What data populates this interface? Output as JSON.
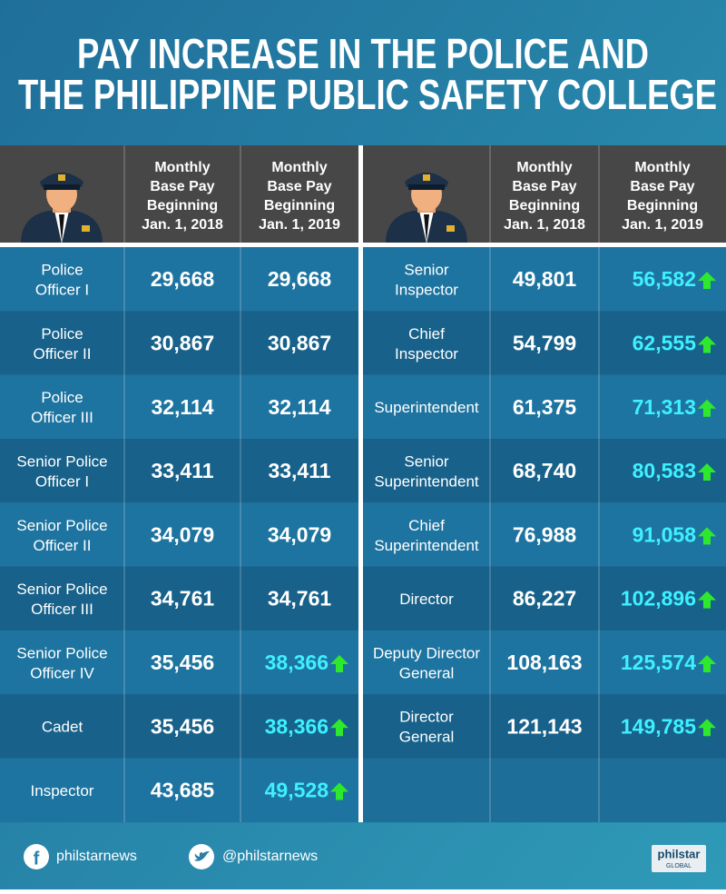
{
  "title": [
    "PAY INCREASE IN THE POLICE AND",
    "THE PHILIPPINE PUBLIC SAFETY COLLEGE"
  ],
  "left": {
    "headers": [
      [
        "Monthly",
        "Base Pay",
        "Beginning",
        "Jan. 1, 2018"
      ],
      [
        "Monthly",
        "Base Pay",
        "Beginning",
        "Jan. 1, 2019"
      ]
    ],
    "rows": [
      [
        [
          "Police",
          "Officer I"
        ],
        "29,668",
        "29,668"
      ],
      [
        [
          "Police",
          "Officer II"
        ],
        "30,867",
        "30,867"
      ],
      [
        [
          "Police",
          "Officer III"
        ],
        "32,114",
        "32,114"
      ],
      [
        [
          "Senior Police",
          "Officer I"
        ],
        "33,411",
        "33,411"
      ],
      [
        [
          "Senior Police",
          "Officer II"
        ],
        "34,079",
        "34,079"
      ],
      [
        [
          "Senior Police",
          "Officer III"
        ],
        "34,761",
        "34,761"
      ],
      [
        [
          "Senior Police",
          "Officer IV"
        ],
        "35,456",
        "38,366"
      ],
      [
        [
          "Cadet"
        ],
        "35,456",
        "38,366"
      ],
      [
        [
          "Inspector"
        ],
        "43,685",
        "49,528"
      ]
    ]
  },
  "right": {
    "headers": [
      [
        "Monthly",
        "Base Pay",
        "Beginning",
        "Jan. 1, 2018"
      ],
      [
        "Monthly",
        "Base Pay",
        "Beginning",
        "Jan. 1, 2019"
      ]
    ],
    "rows": [
      [
        [
          "Senior",
          "Inspector"
        ],
        "49,801",
        "56,582"
      ],
      [
        [
          "Chief",
          "Inspector"
        ],
        "54,799",
        "62,555"
      ],
      [
        [
          "Superintendent"
        ],
        "61,375",
        "71,313"
      ],
      [
        [
          "Senior",
          "Superintendent"
        ],
        "68,740",
        "80,583"
      ],
      [
        [
          "Chief",
          "Superintendent"
        ],
        "76,988",
        "91,058"
      ],
      [
        [
          "Director"
        ],
        "86,227",
        "102,896"
      ],
      [
        [
          "Deputy Director",
          "General"
        ],
        "108,163",
        "125,574"
      ],
      [
        [
          "Director",
          "General"
        ],
        "121,143",
        "149,785"
      ]
    ]
  },
  "footer": {
    "facebook": "philstarnews",
    "twitter": "@philstarnews",
    "logo": [
      "philstar",
      "GLOBAL"
    ]
  }
}
